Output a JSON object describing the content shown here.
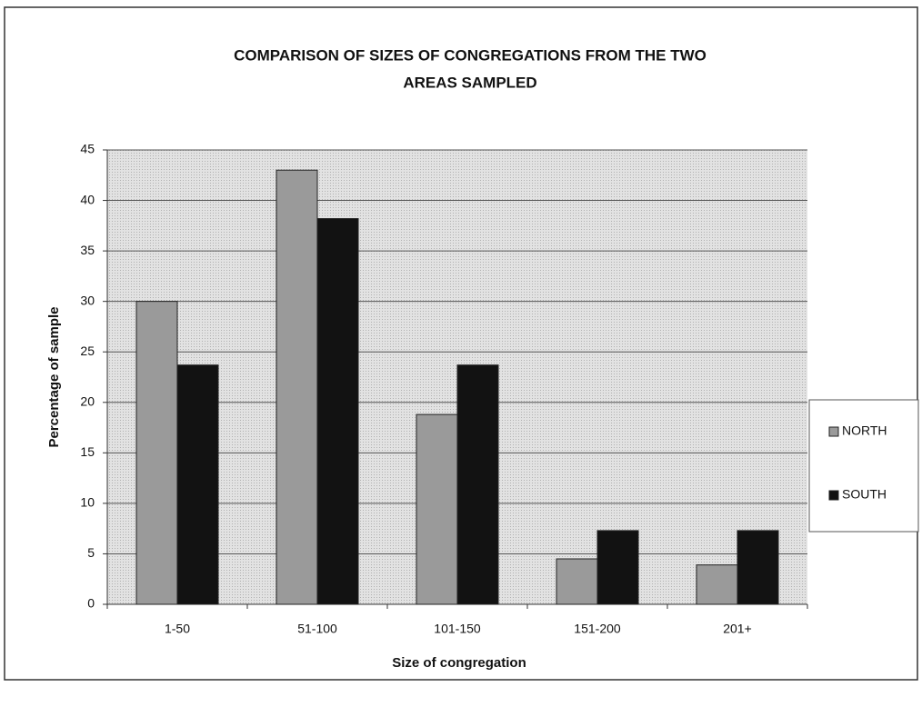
{
  "chart_data": {
    "type": "bar",
    "title_lines": [
      "COMPARISON OF SIZES OF CONGREGATIONS FROM THE TWO",
      "AREAS SAMPLED"
    ],
    "x_label": "Size of congregation",
    "y_label": "Percentage of sample",
    "categories": [
      "1-50",
      "51-100",
      "101-150",
      "151-200",
      "201+"
    ],
    "series": [
      {
        "name": "NORTH",
        "color": "#9a9a9a",
        "values": [
          30,
          43,
          18.8,
          4.5,
          3.9
        ]
      },
      {
        "name": "SOUTH",
        "color": "#121212",
        "values": [
          23.7,
          38.2,
          23.7,
          7.3,
          7.3
        ]
      }
    ],
    "ylim": [
      0,
      45
    ],
    "yticks": [
      0,
      5,
      10,
      15,
      20,
      25,
      30,
      35,
      40,
      45
    ],
    "grid": true,
    "legend": "right"
  }
}
